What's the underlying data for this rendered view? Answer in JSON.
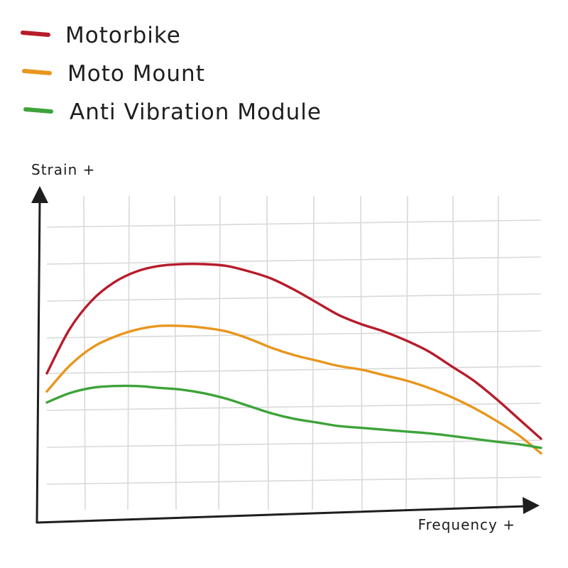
{
  "chart_data": {
    "type": "line",
    "xlabel": "Frequency +",
    "ylabel": "Strain +",
    "xlim": [
      0,
      11
    ],
    "ylim": [
      0,
      8
    ],
    "grid": true,
    "legend_position": "top-left",
    "x": [
      0,
      0.5,
      1,
      1.5,
      2,
      2.5,
      3,
      3.5,
      4,
      4.5,
      5,
      5.5,
      6,
      6.5,
      7,
      7.5,
      8,
      8.5,
      9,
      9.5,
      10,
      10.5,
      11
    ],
    "series": [
      {
        "name": "Motorbike",
        "color": "#b71c2b",
        "values": [
          3.4,
          4.6,
          5.4,
          5.9,
          6.2,
          6.35,
          6.4,
          6.4,
          6.35,
          6.2,
          6.0,
          5.7,
          5.35,
          5.0,
          4.75,
          4.55,
          4.3,
          4.0,
          3.6,
          3.2,
          2.7,
          2.15,
          1.6
        ]
      },
      {
        "name": "Moto Mount",
        "color": "#e8961e",
        "values": [
          2.9,
          3.6,
          4.1,
          4.4,
          4.6,
          4.7,
          4.7,
          4.65,
          4.55,
          4.35,
          4.1,
          3.9,
          3.75,
          3.6,
          3.5,
          3.35,
          3.2,
          3.0,
          2.75,
          2.45,
          2.1,
          1.7,
          1.2
        ]
      },
      {
        "name": "Anti Vibration Module",
        "color": "#3ea33a",
        "values": [
          2.6,
          2.85,
          3.0,
          3.05,
          3.05,
          3.0,
          2.95,
          2.85,
          2.7,
          2.5,
          2.3,
          2.15,
          2.05,
          1.95,
          1.9,
          1.85,
          1.8,
          1.75,
          1.68,
          1.6,
          1.52,
          1.45,
          1.35
        ]
      }
    ]
  }
}
